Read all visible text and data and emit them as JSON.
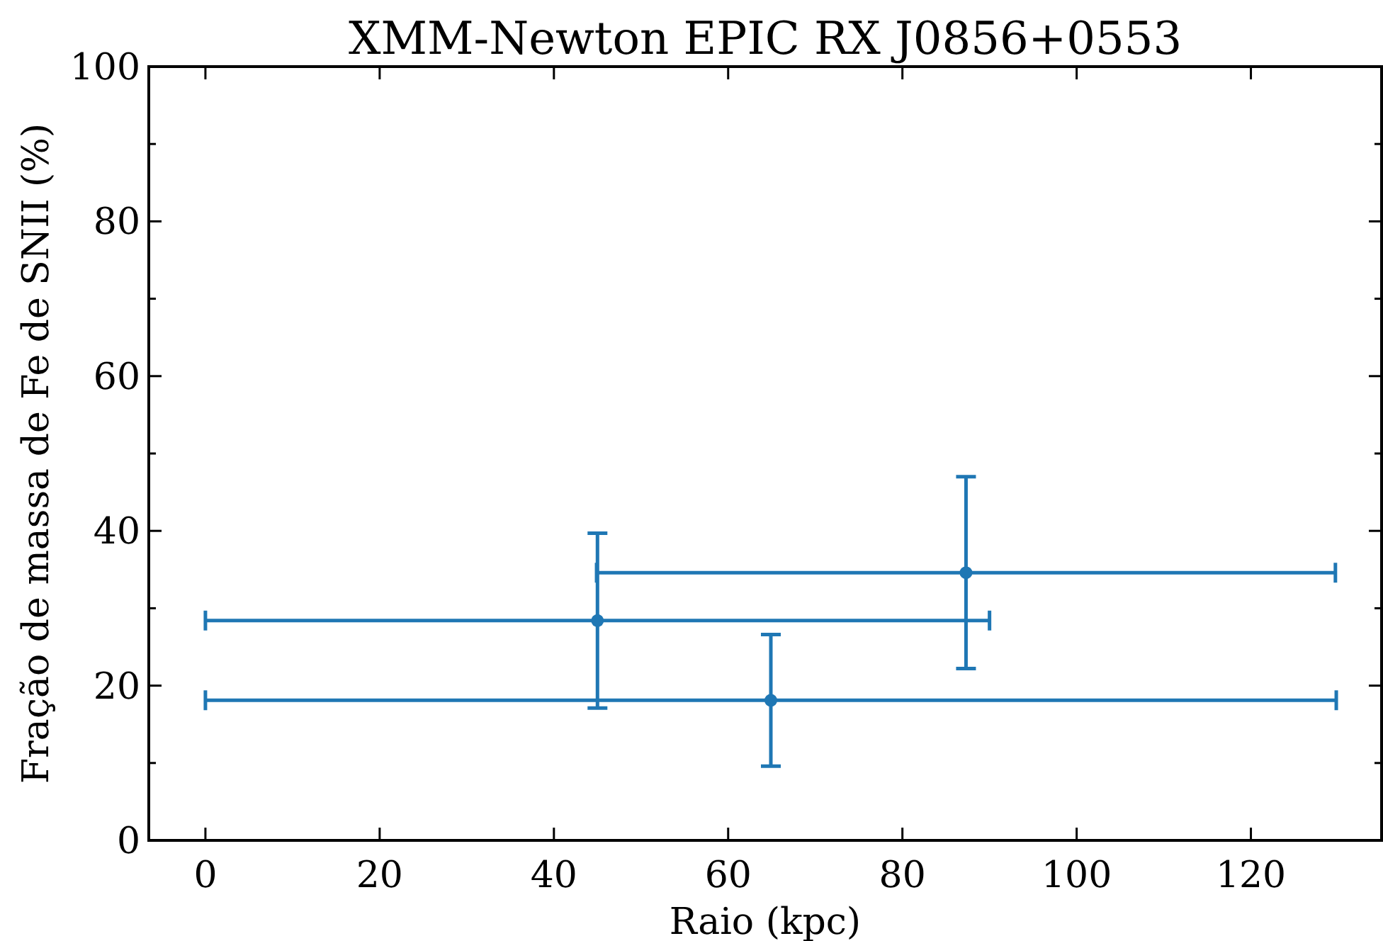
{
  "chart_data": {
    "type": "scatter",
    "title": "XMM-Newton EPIC RX J0856+0553",
    "xlabel": "Raio (kpc)",
    "ylabel": "Fração de massa de Fe de SNII (%)",
    "x": [
      45.0,
      64.9,
      87.3
    ],
    "series": [
      {
        "color": "#1f77b4",
        "values": [
          28.4,
          18.1,
          34.6
        ],
        "errors": [
          11.3,
          8.5,
          12.4
        ],
        "xerrors": [
          45.0,
          64.9,
          42.4
        ]
      }
    ],
    "xlim": [
      -6.5,
      135
    ],
    "xticks": [
      0,
      20,
      40,
      60,
      80,
      100,
      120
    ],
    "ylim": [
      0,
      100
    ],
    "yticks": [
      0,
      {
        "value": 10,
        "label": null
      },
      20,
      {
        "value": 30,
        "label": null
      },
      40,
      {
        "value": 50,
        "label": null
      },
      60,
      {
        "value": 70,
        "label": null
      },
      80,
      {
        "value": 90,
        "label": null
      },
      100
    ],
    "marker": "circle",
    "grid": false
  }
}
